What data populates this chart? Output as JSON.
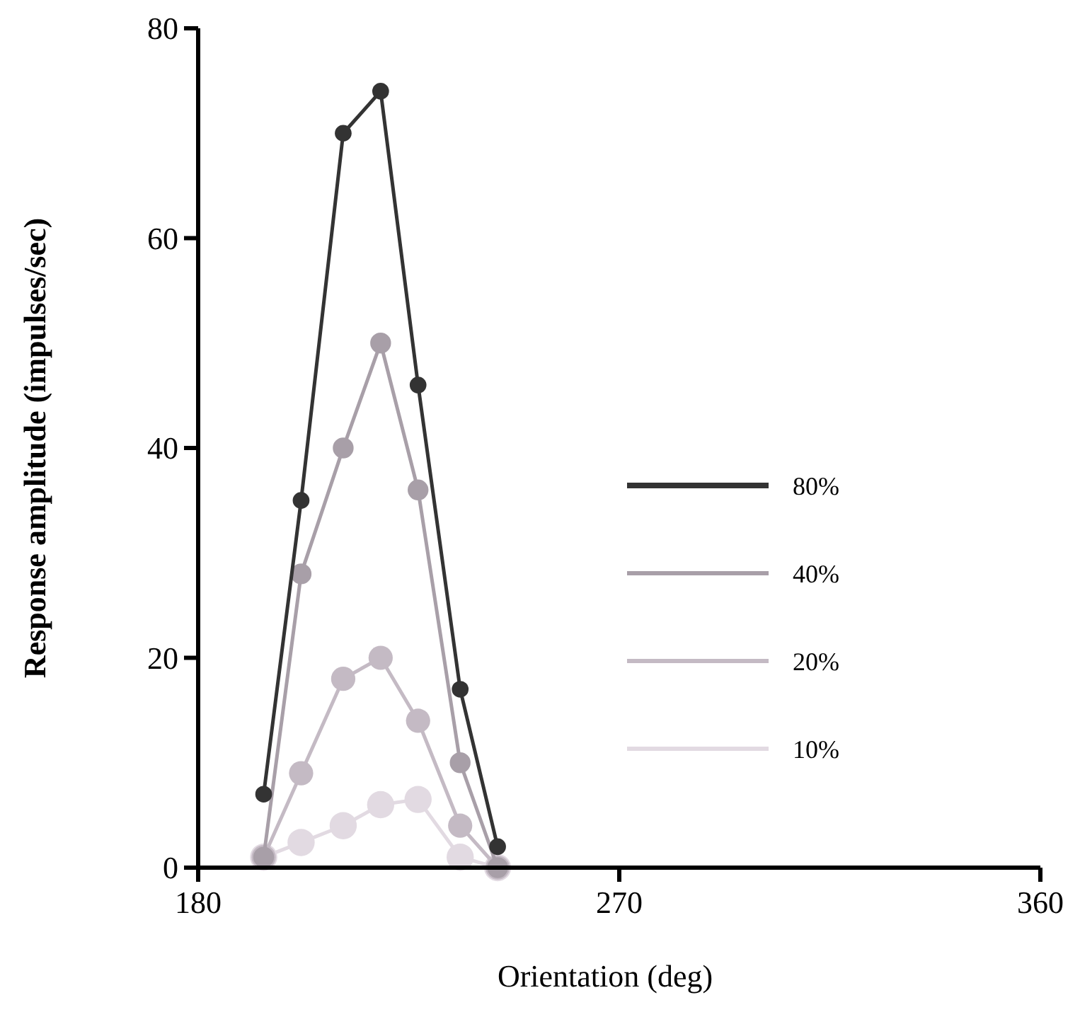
{
  "chart_data": {
    "type": "line",
    "xlabel": "Orientation (deg)",
    "ylabel": "Response amplitude (impulses/sec)",
    "x": [
      194,
      202,
      211,
      219,
      227,
      236,
      244
    ],
    "xlim": [
      180,
      360
    ],
    "xticks": [
      180,
      270,
      360
    ],
    "ylim": [
      0,
      80
    ],
    "yticks": [
      0,
      20,
      40,
      60,
      80
    ],
    "marker": "circle",
    "legend": "right",
    "series": [
      {
        "name": "80%",
        "color": "#333333",
        "values": [
          7,
          35,
          70,
          74,
          46,
          17,
          2
        ]
      },
      {
        "name": "40%",
        "color": "#a89fa8",
        "values": [
          1,
          28,
          40,
          50,
          36,
          10,
          0
        ]
      },
      {
        "name": "20%",
        "color": "#c4bac4",
        "values": [
          1,
          9,
          18,
          20,
          14,
          4,
          0
        ]
      },
      {
        "name": "10%",
        "color": "#e2dae2",
        "values": [
          1,
          2.4,
          4,
          6,
          6.5,
          1,
          0
        ]
      }
    ]
  }
}
